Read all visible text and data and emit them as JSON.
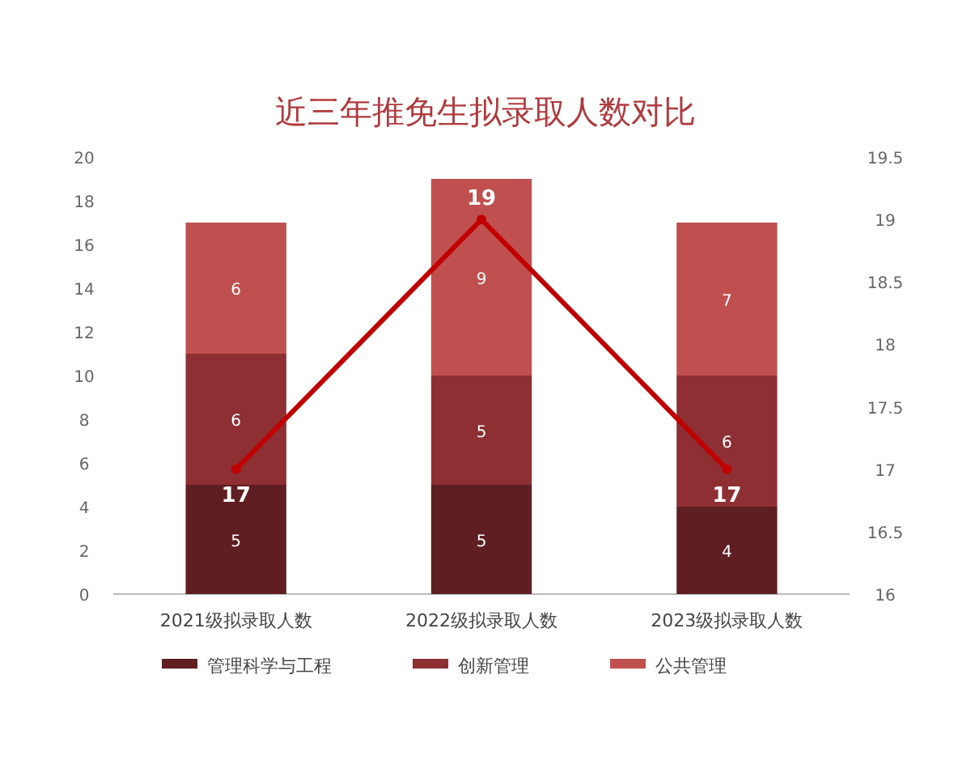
{
  "chart_data": {
    "type": "bar",
    "title": "近三年推免生拟录取人数对比",
    "stacked": true,
    "legend": "bottom",
    "data_labels": true,
    "categories": [
      "2021级拟录取人数",
      "2022级拟录取人数",
      "2023级拟录取人数"
    ],
    "ylim": [
      0,
      20
    ],
    "yticks": [
      0,
      2,
      4,
      6,
      8,
      10,
      12,
      14,
      16,
      18,
      20
    ],
    "y2lim": [
      16,
      19.5
    ],
    "y2ticks": [
      16,
      16.5,
      17,
      17.5,
      18,
      18.5,
      19,
      19.5
    ],
    "series": [
      {
        "name": "管理科学与工程",
        "color": "#5e1e22",
        "values": [
          5,
          5,
          4
        ]
      },
      {
        "name": "创新管理",
        "color": "#8e2f33",
        "values": [
          6,
          5,
          6
        ]
      },
      {
        "name": "公共管理",
        "color": "#c0504f",
        "values": [
          6,
          9,
          7
        ]
      },
      {
        "type": "line",
        "axis": "y2",
        "color": "#c00000",
        "marker": "circle",
        "values": [
          17,
          19,
          17
        ]
      }
    ]
  }
}
